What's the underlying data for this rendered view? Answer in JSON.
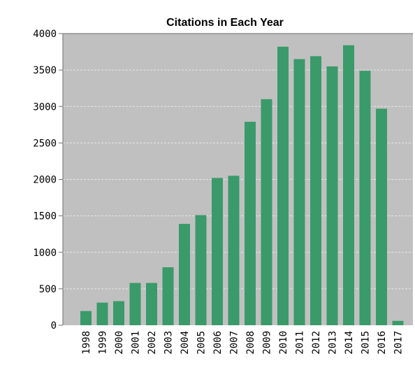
{
  "chart_data": {
    "type": "bar",
    "title": "Citations in Each Year",
    "xlabel": "",
    "ylabel": "",
    "categories": [
      "1998",
      "1999",
      "2000",
      "2001",
      "2002",
      "2003",
      "2004",
      "2005",
      "2006",
      "2007",
      "2008",
      "2009",
      "2010",
      "2011",
      "2012",
      "2013",
      "2014",
      "2015",
      "2016",
      "2017"
    ],
    "values": [
      195,
      310,
      330,
      580,
      580,
      795,
      1390,
      1510,
      2020,
      2050,
      2790,
      3100,
      3820,
      3650,
      3690,
      3550,
      3840,
      3490,
      2970,
      60
    ],
    "ylim": [
      0,
      4000
    ],
    "yticks": [
      0,
      500,
      1000,
      1500,
      2000,
      2500,
      3000,
      3500,
      4000
    ],
    "grid": true,
    "legend": "none",
    "colors": {
      "bar": "#3a9a6a",
      "plot_background": "#c0c0c0",
      "gridline": "#e8e8e8",
      "axis": "#6e6e6e"
    }
  }
}
